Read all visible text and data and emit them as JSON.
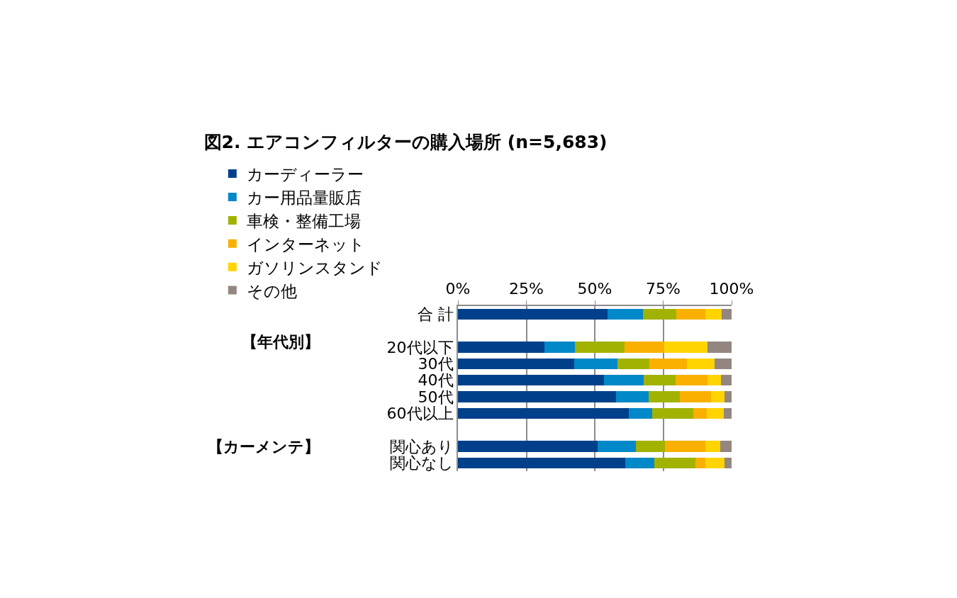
{
  "chart_data": {
    "type": "bar",
    "orientation": "horizontal",
    "stacked": true,
    "title": "図2. エアコンフィルターの購入場所 (n=5,683)",
    "categories": [
      "合 計",
      null,
      "20代以下",
      "30代",
      "40代",
      "50代",
      "60代以上",
      null,
      "関心あり",
      "関心なし"
    ],
    "series": [
      {
        "name": "カーディーラー",
        "color": "#00408a",
        "values": [
          54.7,
          null,
          31.6,
          42.5,
          53.3,
          57.8,
          62.4,
          null,
          51.1,
          61.1
        ]
      },
      {
        "name": "カー用品量販店",
        "color": "#0088c8",
        "values": [
          12.8,
          null,
          11.2,
          15.7,
          14.6,
          11.9,
          8.7,
          null,
          13.8,
          10.7
        ]
      },
      {
        "name": "車検・整備工場",
        "color": "#a2b200",
        "values": [
          12.3,
          null,
          18.2,
          11.8,
          11.7,
          11.3,
          15.0,
          null,
          10.8,
          15.0
        ]
      },
      {
        "name": "インターネット",
        "color": "#f9b000",
        "values": [
          10.7,
          null,
          14.5,
          13.6,
          11.7,
          11.5,
          4.8,
          null,
          14.6,
          3.7
        ]
      },
      {
        "name": "ガソリンスタンド",
        "color": "#ffd400",
        "values": [
          5.8,
          null,
          15.6,
          10.3,
          4.8,
          4.9,
          6.2,
          null,
          5.5,
          6.9
        ]
      },
      {
        "name": "その他",
        "color": "#938680",
        "values": [
          3.7,
          null,
          8.9,
          6.1,
          3.9,
          2.6,
          2.9,
          null,
          4.2,
          2.6
        ]
      }
    ],
    "xlim": [
      0,
      100
    ],
    "xticks": [
      {
        "value": 0,
        "label": "0%"
      },
      {
        "value": 25,
        "label": "25%"
      },
      {
        "value": 50,
        "label": "50%"
      },
      {
        "value": 75,
        "label": "75%"
      },
      {
        "value": 100,
        "label": "100%"
      }
    ],
    "annotations": [
      "【年代別】",
      "【カーメンテ】"
    ],
    "grid": "x",
    "legend": "top"
  }
}
